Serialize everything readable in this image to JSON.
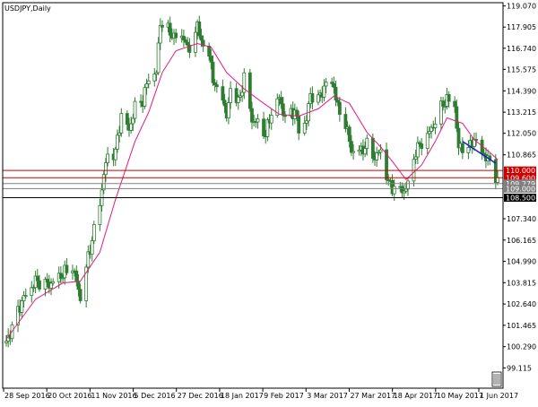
{
  "chart_data": {
    "type": "candlestick",
    "title": "USDJPY,Daily",
    "ylim": [
      98.0,
      119.25
    ],
    "y_ticks": [
      "119.070",
      "117.905",
      "116.740",
      "115.575",
      "114.390",
      "113.215",
      "112.050",
      "110.865",
      "107.340",
      "106.165",
      "104.990",
      "103.815",
      "102.640",
      "101.465",
      "100.290",
      "99.115"
    ],
    "x_ticks": [
      "28 Sep 2016",
      "20 Oct 2016",
      "11 Nov 2016",
      "5 Dec 2016",
      "27 Dec 2016",
      "18 Jan 2017",
      "9 Feb 2017",
      "3 Mar 2017",
      "27 Mar 2017",
      "18 Apr 2017",
      "10 May 2017",
      "1 Jun 2017"
    ],
    "first_date": "2016-09-27",
    "last_date": "2017-06-06",
    "close_path": [
      [
        "2016-09-27",
        100.5
      ],
      [
        "2016-10-05",
        102.8
      ],
      [
        "2016-10-12",
        103.9
      ],
      [
        "2016-10-19",
        103.7
      ],
      [
        "2016-10-26",
        104.3
      ],
      [
        "2016-10-31",
        104.7
      ],
      [
        "2016-11-04",
        103.0
      ],
      [
        "2016-11-08",
        105.2
      ],
      [
        "2016-11-11",
        106.7
      ],
      [
        "2016-11-14",
        108.2
      ],
      [
        "2016-11-16",
        109.8
      ],
      [
        "2016-11-18",
        110.8
      ],
      [
        "2016-11-22",
        111.0
      ],
      [
        "2016-11-25",
        113.1
      ],
      [
        "2016-11-29",
        112.2
      ],
      [
        "2016-12-02",
        113.5
      ],
      [
        "2016-12-06",
        113.9
      ],
      [
        "2016-12-09",
        115.1
      ],
      [
        "2016-12-13",
        115.4
      ],
      [
        "2016-12-15",
        118.2
      ],
      [
        "2016-12-20",
        117.6
      ],
      [
        "2016-12-23",
        117.3
      ],
      [
        "2016-12-27",
        117.4
      ],
      [
        "2016-12-29",
        116.6
      ],
      [
        "2017-01-03",
        117.9
      ],
      [
        "2017-01-06",
        116.9
      ],
      [
        "2017-01-10",
        115.9
      ],
      [
        "2017-01-12",
        114.5
      ],
      [
        "2017-01-16",
        114.2
      ],
      [
        "2017-01-18",
        112.8
      ],
      [
        "2017-01-20",
        114.6
      ],
      [
        "2017-01-24",
        113.7
      ],
      [
        "2017-01-27",
        115.1
      ],
      [
        "2017-01-31",
        112.8
      ],
      [
        "2017-02-03",
        112.6
      ],
      [
        "2017-02-07",
        112.0
      ],
      [
        "2017-02-10",
        113.2
      ],
      [
        "2017-02-14",
        114.0
      ],
      [
        "2017-02-17",
        112.9
      ],
      [
        "2017-02-22",
        113.3
      ],
      [
        "2017-02-24",
        112.2
      ],
      [
        "2017-02-28",
        112.8
      ],
      [
        "2017-03-02",
        114.2
      ],
      [
        "2017-03-06",
        113.9
      ],
      [
        "2017-03-10",
        114.8
      ],
      [
        "2017-03-14",
        114.7
      ],
      [
        "2017-03-16",
        113.4
      ],
      [
        "2017-03-20",
        112.6
      ],
      [
        "2017-03-23",
        111.1
      ],
      [
        "2017-03-28",
        111.1
      ],
      [
        "2017-03-31",
        111.4
      ],
      [
        "2017-04-04",
        110.7
      ],
      [
        "2017-04-07",
        111.1
      ],
      [
        "2017-04-11",
        109.3
      ],
      [
        "2017-04-13",
        109.1
      ],
      [
        "2017-04-17",
        108.9
      ],
      [
        "2017-04-19",
        108.9
      ],
      [
        "2017-04-21",
        109.2
      ],
      [
        "2017-04-25",
        111.1
      ],
      [
        "2017-04-28",
        111.5
      ],
      [
        "2017-05-02",
        112.1
      ],
      [
        "2017-05-05",
        112.7
      ],
      [
        "2017-05-09",
        113.7
      ],
      [
        "2017-05-11",
        113.9
      ],
      [
        "2017-05-15",
        113.6
      ],
      [
        "2017-05-17",
        111.2
      ],
      [
        "2017-05-19",
        111.3
      ],
      [
        "2017-05-23",
        111.3
      ],
      [
        "2017-05-25",
        111.8
      ],
      [
        "2017-05-29",
        110.9
      ],
      [
        "2017-05-31",
        110.8
      ],
      [
        "2017-06-02",
        110.4
      ],
      [
        "2017-06-06",
        109.5
      ]
    ],
    "ma_path": [
      [
        "2016-09-27",
        100.7
      ],
      [
        "2016-10-12",
        102.9
      ],
      [
        "2016-10-26",
        103.8
      ],
      [
        "2016-11-04",
        103.9
      ],
      [
        "2016-11-14",
        105.5
      ],
      [
        "2016-11-22",
        108.4
      ],
      [
        "2016-12-02",
        111.6
      ],
      [
        "2016-12-09",
        113.2
      ],
      [
        "2016-12-16",
        115.4
      ],
      [
        "2016-12-23",
        116.6
      ],
      [
        "2017-01-03",
        117.0
      ],
      [
        "2017-01-10",
        116.8
      ],
      [
        "2017-01-18",
        115.4
      ],
      [
        "2017-01-27",
        114.5
      ],
      [
        "2017-02-06",
        113.7
      ],
      [
        "2017-02-14",
        113.1
      ],
      [
        "2017-02-24",
        113.0
      ],
      [
        "2017-03-06",
        113.4
      ],
      [
        "2017-03-14",
        114.1
      ],
      [
        "2017-03-22",
        113.7
      ],
      [
        "2017-03-31",
        112.1
      ],
      [
        "2017-04-07",
        111.3
      ],
      [
        "2017-04-13",
        110.5
      ],
      [
        "2017-04-20",
        109.5
      ],
      [
        "2017-04-28",
        110.3
      ],
      [
        "2017-05-05",
        111.6
      ],
      [
        "2017-05-11",
        112.9
      ],
      [
        "2017-05-19",
        112.6
      ],
      [
        "2017-05-25",
        111.7
      ],
      [
        "2017-06-02",
        111.0
      ],
      [
        "2017-06-06",
        110.6
      ]
    ],
    "trendline": {
      "from": [
        "2017-05-19",
        111.6
      ],
      "to": [
        "2017-06-05",
        110.4
      ]
    },
    "level_lines": [
      {
        "value": 110.0,
        "label": "110.000",
        "color": "#cc0000"
      },
      {
        "value": 109.6,
        "label": "109.600",
        "color": "#cc0000"
      },
      {
        "value": 109.279,
        "label": "109.279",
        "color": "#808080"
      },
      {
        "value": 109.0,
        "label": "109.000",
        "color": "#808080"
      },
      {
        "value": 108.5,
        "label": "108.500",
        "color": "#000000"
      }
    ],
    "colors": {
      "candles": "#2e7d32",
      "ma_line": "#e5197e",
      "trendline": "#1a1acc"
    },
    "grid": false
  }
}
